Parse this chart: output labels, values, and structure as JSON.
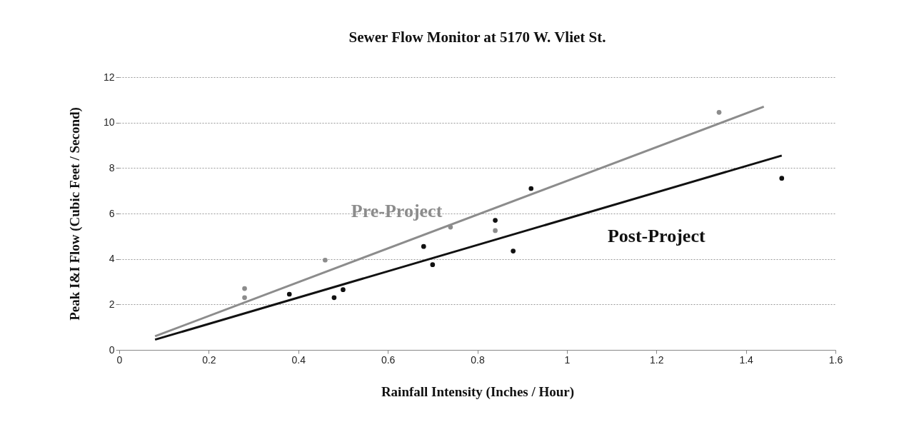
{
  "chart_data": {
    "type": "scatter",
    "title": "Sewer Flow Monitor at 5170 W. Vliet St.",
    "xlabel": "Rainfall Intensity (Inches / Hour)",
    "ylabel": "Peak I&I Flow (Cubic Feet / Second)",
    "xlim": [
      0,
      1.6
    ],
    "xticks": [
      0,
      0.2,
      0.4,
      0.6,
      0.8,
      1,
      1.2,
      1.4,
      1.6
    ],
    "ylim": [
      0,
      12
    ],
    "yticks": [
      0,
      2,
      4,
      6,
      8,
      10,
      12
    ],
    "grid": "y",
    "marker": "circle",
    "series": [
      {
        "name": "Pre-Project",
        "color": "#8c8c8c",
        "x": [
          0.28,
          0.28,
          0.46,
          0.74,
          0.84,
          1.34
        ],
        "values": [
          2.7,
          2.3,
          3.95,
          5.4,
          5.25,
          10.45
        ]
      },
      {
        "type": "line",
        "marker": "none",
        "color": "#8c8c8c",
        "x": [
          0.08,
          1.44
        ],
        "values": [
          0.6,
          10.7
        ]
      },
      {
        "name": "Post-Project",
        "color": "#111111",
        "x": [
          0.38,
          0.48,
          0.5,
          0.68,
          0.7,
          0.84,
          0.88,
          0.92,
          1.48
        ],
        "values": [
          2.45,
          2.3,
          2.65,
          4.55,
          3.75,
          5.7,
          4.35,
          7.1,
          7.55
        ]
      },
      {
        "type": "line",
        "marker": "none",
        "color": "#111111",
        "x": [
          0.08,
          1.48
        ],
        "values": [
          0.45,
          8.55
        ]
      }
    ]
  }
}
